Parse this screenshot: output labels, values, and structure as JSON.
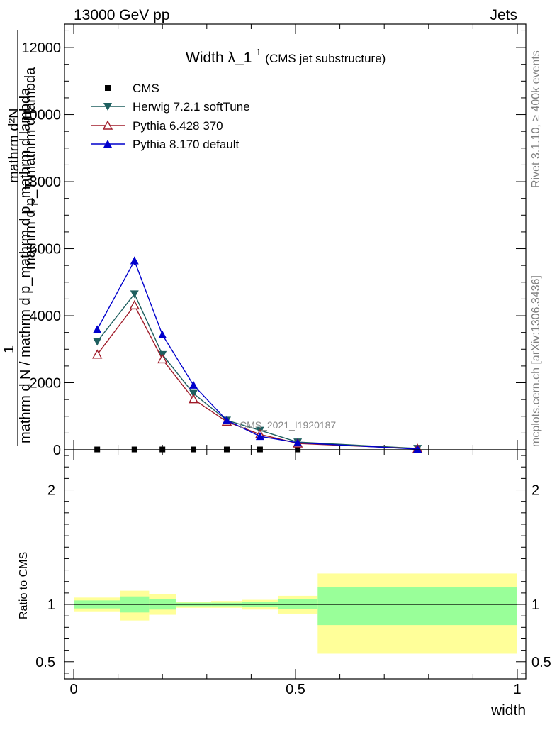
{
  "header": {
    "left": "13000 GeV pp",
    "right": "Jets",
    "watermark": "CMS_2021_I1920187",
    "side_top": "Rivet 3.1.10, ≥ 400k events",
    "side_bottom": "mcplots.cern.ch [arXiv:1306.3436]"
  },
  "chart_data": {
    "type": "line",
    "title_main": "Width λ_1",
    "title_sup": "1",
    "title_paren": "(CMS jet substructure)",
    "ylabel_main": "mathrm d N / mathrm d p_mathrm d p_mathrm d lambda",
    "ylabel_numerator": "1",
    "ylabel_denominator": "mathrm d²N",
    "ylabel_upper": "mathrm d p_T mathrm d lambda",
    "ratio_ylabel": "Ratio to CMS",
    "xlabel": "width",
    "xlim": [
      0,
      1
    ],
    "ylim": [
      0,
      12700
    ],
    "ratio_ylim": [
      0.35,
      2.35
    ],
    "x_ticks": [
      {
        "v": 0,
        "label": "0"
      },
      {
        "v": 0.5,
        "label": "0.5"
      },
      {
        "v": 1,
        "label": "1"
      }
    ],
    "y_ticks": [
      {
        "v": 0,
        "label": "0"
      },
      {
        "v": 2000,
        "label": "2000"
      },
      {
        "v": 4000,
        "label": "4000"
      },
      {
        "v": 6000,
        "label": "6000"
      },
      {
        "v": 8000,
        "label": "8000"
      },
      {
        "v": 10000,
        "label": "10000"
      },
      {
        "v": 12000,
        "label": "12000"
      }
    ],
    "ratio_ticks": [
      {
        "v": 0.5,
        "label": "0.5"
      },
      {
        "v": 1,
        "label": "1"
      },
      {
        "v": 2,
        "label": "2"
      }
    ],
    "bin_edges": [
      0,
      0.105,
      0.17,
      0.23,
      0.31,
      0.38,
      0.46,
      0.55,
      1.0
    ],
    "series": [
      {
        "name": "CMS",
        "color": "#000000",
        "marker": "square",
        "x": [
          0.053,
          0.137,
          0.2,
          0.27,
          0.345,
          0.42,
          0.505,
          0.775
        ],
        "values": [
          10,
          10,
          10,
          10,
          10,
          10,
          10,
          5
        ]
      },
      {
        "name": "Herwig 7.2.1 softTune",
        "color": "#1e5f5f",
        "marker": "triangle-down",
        "x": [
          0.053,
          0.137,
          0.2,
          0.27,
          0.345,
          0.42,
          0.505,
          0.775
        ],
        "values": [
          3230,
          4650,
          2840,
          1680,
          880,
          580,
          230,
          40
        ]
      },
      {
        "name": "Pythia 6.428 370",
        "color": "#a01c2a",
        "marker": "triangle-up-open",
        "x": [
          0.053,
          0.137,
          0.2,
          0.27,
          0.345,
          0.42,
          0.505,
          0.775
        ],
        "values": [
          2840,
          4310,
          2700,
          1510,
          840,
          460,
          190,
          30
        ]
      },
      {
        "name": "Pythia 8.170 default",
        "color": "#0000cc",
        "marker": "triangle-up",
        "x": [
          0.053,
          0.137,
          0.2,
          0.27,
          0.345,
          0.42,
          0.505,
          0.775
        ],
        "values": [
          3590,
          5640,
          3430,
          1930,
          880,
          400,
          210,
          20
        ]
      }
    ],
    "ratio_bands": [
      {
        "x0": 0.0,
        "x1": 0.105,
        "green": [
          0.965,
          1.035
        ],
        "yellow": [
          0.94,
          1.06
        ]
      },
      {
        "x0": 0.105,
        "x1": 0.17,
        "green": [
          0.93,
          1.07
        ],
        "yellow": [
          0.86,
          1.12
        ]
      },
      {
        "x0": 0.17,
        "x1": 0.23,
        "green": [
          0.955,
          1.045
        ],
        "yellow": [
          0.91,
          1.09
        ]
      },
      {
        "x0": 0.23,
        "x1": 0.31,
        "green": [
          0.985,
          1.015
        ],
        "yellow": [
          0.97,
          1.025
        ]
      },
      {
        "x0": 0.31,
        "x1": 0.38,
        "green": [
          0.985,
          1.015
        ],
        "yellow": [
          0.97,
          1.03
        ]
      },
      {
        "x0": 0.38,
        "x1": 0.46,
        "green": [
          0.975,
          1.025
        ],
        "yellow": [
          0.955,
          1.04
        ]
      },
      {
        "x0": 0.46,
        "x1": 0.55,
        "green": [
          0.96,
          1.045
        ],
        "yellow": [
          0.92,
          1.075
        ]
      },
      {
        "x0": 0.55,
        "x1": 1.0,
        "green": [
          0.82,
          1.15
        ],
        "yellow": [
          0.57,
          1.27
        ]
      }
    ]
  }
}
